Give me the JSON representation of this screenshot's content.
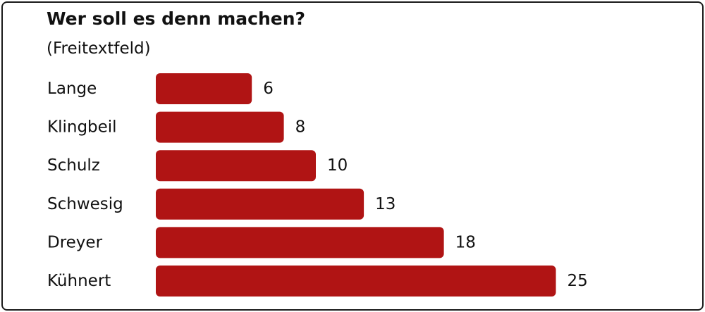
{
  "chart_data": {
    "type": "bar",
    "orientation": "horizontal",
    "title": "Wer soll es denn machen?",
    "subtitle": "(Freitextfeld)",
    "categories": [
      "Lange",
      "Klingbeil",
      "Schulz",
      "Schwesig",
      "Dreyer",
      "Kühnert"
    ],
    "values": [
      6,
      8,
      10,
      13,
      18,
      25
    ],
    "xlim": [
      0,
      25
    ],
    "grid": false,
    "legend": "none",
    "bar_color": "#b01414"
  }
}
